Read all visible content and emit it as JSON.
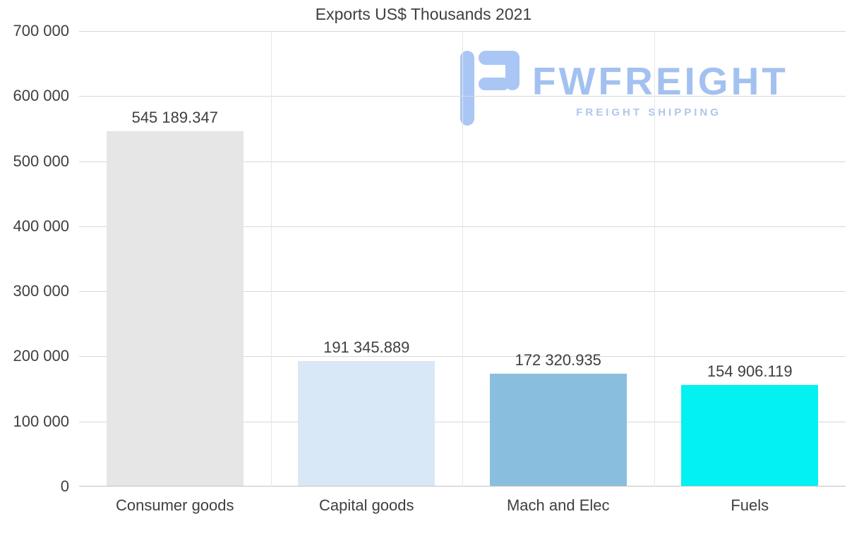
{
  "title": "Exports US$ Thousands 2021",
  "logo": {
    "name": "FWFREIGHT",
    "tagline": "FREIGHT SHIPPING",
    "color": "#a3c1f0"
  },
  "colors": {
    "text": "#3f3f3f",
    "gridline": "#d8d8d8",
    "background": "#ffffff"
  },
  "chart_data": {
    "type": "bar",
    "title": "Exports US$ Thousands 2021",
    "categories": [
      "Consumer goods",
      "Capital goods",
      "Mach and Elec",
      "Fuels"
    ],
    "values": [
      545189.347,
      191345.889,
      172320.935,
      154906.119
    ],
    "value_labels": [
      "545 189.347",
      "191 345.889",
      "172 320.935",
      "154 906.119"
    ],
    "bar_colors": [
      "#e6e6e6",
      "#d9e8f6",
      "#89bede",
      "#04f1f1"
    ],
    "xlabel": "",
    "ylabel": "",
    "ylim": [
      0,
      700000
    ],
    "ytick_step": 100000,
    "ytick_labels": [
      "0",
      "100 000",
      "200 000",
      "300 000",
      "400 000",
      "500 000",
      "600 000",
      "700 000"
    ],
    "grid": true,
    "legend": false
  }
}
